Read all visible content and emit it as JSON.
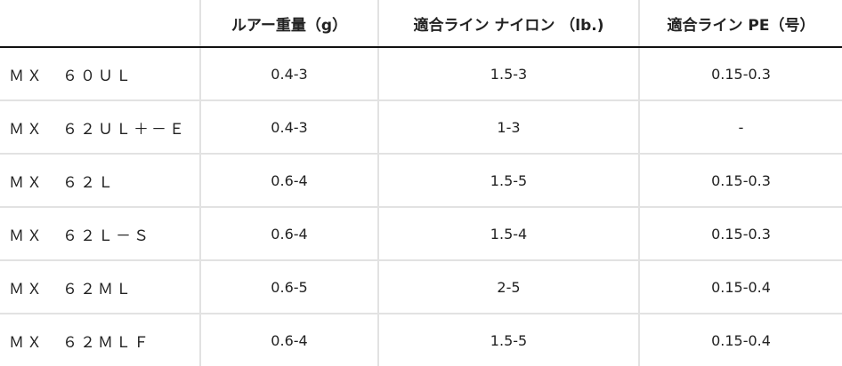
{
  "table": {
    "headers": [
      "",
      "ルアー重量（g）",
      "適合ライン ナイロン （lb.)",
      "適合ライン PE（号）"
    ],
    "rows": [
      [
        "ＭＸ　６０ＵＬ",
        "0.4-3",
        "1.5-3",
        "0.15-0.3"
      ],
      [
        "ＭＸ　６２ＵＬ＋－Ｅ",
        "0.4-3",
        "1-3",
        "-"
      ],
      [
        "ＭＸ　６２Ｌ",
        "0.6-4",
        "1.5-5",
        "0.15-0.3"
      ],
      [
        "ＭＸ　６２Ｌ－Ｓ",
        "0.6-4",
        "1.5-4",
        "0.15-0.3"
      ],
      [
        "ＭＸ　６２ＭＬ",
        "0.6-5",
        "2-5",
        "0.15-0.4"
      ],
      [
        "ＭＸ　６２ＭＬＦ",
        "0.6-4",
        "1.5-5",
        "0.15-0.4"
      ]
    ]
  }
}
